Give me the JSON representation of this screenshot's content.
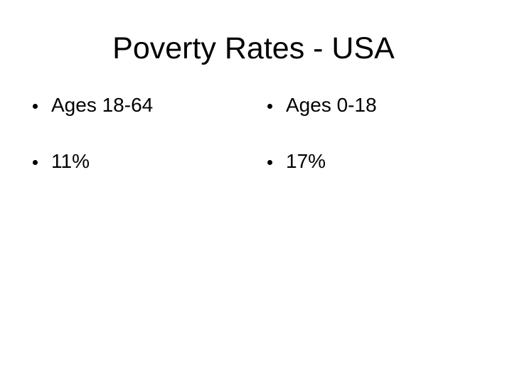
{
  "slide": {
    "title": "Poverty Rates - USA",
    "columns": [
      {
        "items": [
          {
            "label": "Ages 18-64"
          },
          {
            "label": "11%"
          }
        ]
      },
      {
        "items": [
          {
            "label": "Ages 0-18"
          },
          {
            "label": "17%"
          }
        ]
      }
    ],
    "colors": {
      "background": "#ffffff",
      "text": "#000000"
    }
  }
}
